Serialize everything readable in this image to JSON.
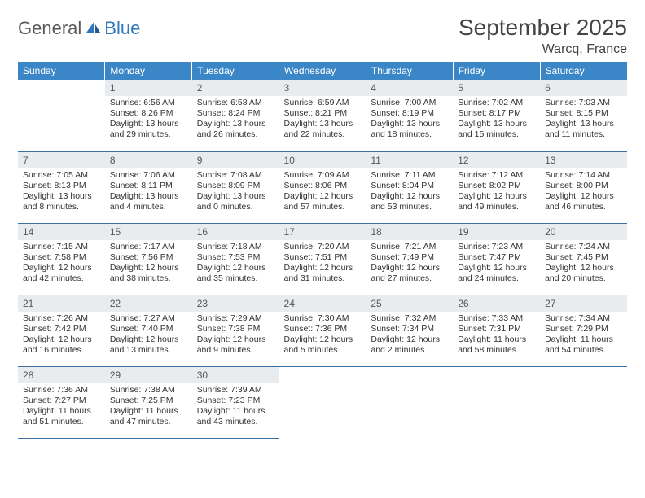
{
  "brand": {
    "part1": "General",
    "part2": "Blue"
  },
  "title": "September 2025",
  "location": "Warcq, France",
  "colors": {
    "header_bg": "#3b86c6",
    "header_text": "#ffffff",
    "daynum_bg": "#e9ecef",
    "row_divider": "#3b6fa0",
    "brand_gray": "#5a5a5a",
    "brand_blue": "#2f78bd"
  },
  "weekdays": [
    "Sunday",
    "Monday",
    "Tuesday",
    "Wednesday",
    "Thursday",
    "Friday",
    "Saturday"
  ],
  "weeks": [
    [
      null,
      {
        "n": "1",
        "sr": "Sunrise: 6:56 AM",
        "ss": "Sunset: 8:26 PM",
        "d1": "Daylight: 13 hours",
        "d2": "and 29 minutes."
      },
      {
        "n": "2",
        "sr": "Sunrise: 6:58 AM",
        "ss": "Sunset: 8:24 PM",
        "d1": "Daylight: 13 hours",
        "d2": "and 26 minutes."
      },
      {
        "n": "3",
        "sr": "Sunrise: 6:59 AM",
        "ss": "Sunset: 8:21 PM",
        "d1": "Daylight: 13 hours",
        "d2": "and 22 minutes."
      },
      {
        "n": "4",
        "sr": "Sunrise: 7:00 AM",
        "ss": "Sunset: 8:19 PM",
        "d1": "Daylight: 13 hours",
        "d2": "and 18 minutes."
      },
      {
        "n": "5",
        "sr": "Sunrise: 7:02 AM",
        "ss": "Sunset: 8:17 PM",
        "d1": "Daylight: 13 hours",
        "d2": "and 15 minutes."
      },
      {
        "n": "6",
        "sr": "Sunrise: 7:03 AM",
        "ss": "Sunset: 8:15 PM",
        "d1": "Daylight: 13 hours",
        "d2": "and 11 minutes."
      }
    ],
    [
      {
        "n": "7",
        "sr": "Sunrise: 7:05 AM",
        "ss": "Sunset: 8:13 PM",
        "d1": "Daylight: 13 hours",
        "d2": "and 8 minutes."
      },
      {
        "n": "8",
        "sr": "Sunrise: 7:06 AM",
        "ss": "Sunset: 8:11 PM",
        "d1": "Daylight: 13 hours",
        "d2": "and 4 minutes."
      },
      {
        "n": "9",
        "sr": "Sunrise: 7:08 AM",
        "ss": "Sunset: 8:09 PM",
        "d1": "Daylight: 13 hours",
        "d2": "and 0 minutes."
      },
      {
        "n": "10",
        "sr": "Sunrise: 7:09 AM",
        "ss": "Sunset: 8:06 PM",
        "d1": "Daylight: 12 hours",
        "d2": "and 57 minutes."
      },
      {
        "n": "11",
        "sr": "Sunrise: 7:11 AM",
        "ss": "Sunset: 8:04 PM",
        "d1": "Daylight: 12 hours",
        "d2": "and 53 minutes."
      },
      {
        "n": "12",
        "sr": "Sunrise: 7:12 AM",
        "ss": "Sunset: 8:02 PM",
        "d1": "Daylight: 12 hours",
        "d2": "and 49 minutes."
      },
      {
        "n": "13",
        "sr": "Sunrise: 7:14 AM",
        "ss": "Sunset: 8:00 PM",
        "d1": "Daylight: 12 hours",
        "d2": "and 46 minutes."
      }
    ],
    [
      {
        "n": "14",
        "sr": "Sunrise: 7:15 AM",
        "ss": "Sunset: 7:58 PM",
        "d1": "Daylight: 12 hours",
        "d2": "and 42 minutes."
      },
      {
        "n": "15",
        "sr": "Sunrise: 7:17 AM",
        "ss": "Sunset: 7:56 PM",
        "d1": "Daylight: 12 hours",
        "d2": "and 38 minutes."
      },
      {
        "n": "16",
        "sr": "Sunrise: 7:18 AM",
        "ss": "Sunset: 7:53 PM",
        "d1": "Daylight: 12 hours",
        "d2": "and 35 minutes."
      },
      {
        "n": "17",
        "sr": "Sunrise: 7:20 AM",
        "ss": "Sunset: 7:51 PM",
        "d1": "Daylight: 12 hours",
        "d2": "and 31 minutes."
      },
      {
        "n": "18",
        "sr": "Sunrise: 7:21 AM",
        "ss": "Sunset: 7:49 PM",
        "d1": "Daylight: 12 hours",
        "d2": "and 27 minutes."
      },
      {
        "n": "19",
        "sr": "Sunrise: 7:23 AM",
        "ss": "Sunset: 7:47 PM",
        "d1": "Daylight: 12 hours",
        "d2": "and 24 minutes."
      },
      {
        "n": "20",
        "sr": "Sunrise: 7:24 AM",
        "ss": "Sunset: 7:45 PM",
        "d1": "Daylight: 12 hours",
        "d2": "and 20 minutes."
      }
    ],
    [
      {
        "n": "21",
        "sr": "Sunrise: 7:26 AM",
        "ss": "Sunset: 7:42 PM",
        "d1": "Daylight: 12 hours",
        "d2": "and 16 minutes."
      },
      {
        "n": "22",
        "sr": "Sunrise: 7:27 AM",
        "ss": "Sunset: 7:40 PM",
        "d1": "Daylight: 12 hours",
        "d2": "and 13 minutes."
      },
      {
        "n": "23",
        "sr": "Sunrise: 7:29 AM",
        "ss": "Sunset: 7:38 PM",
        "d1": "Daylight: 12 hours",
        "d2": "and 9 minutes."
      },
      {
        "n": "24",
        "sr": "Sunrise: 7:30 AM",
        "ss": "Sunset: 7:36 PM",
        "d1": "Daylight: 12 hours",
        "d2": "and 5 minutes."
      },
      {
        "n": "25",
        "sr": "Sunrise: 7:32 AM",
        "ss": "Sunset: 7:34 PM",
        "d1": "Daylight: 12 hours",
        "d2": "and 2 minutes."
      },
      {
        "n": "26",
        "sr": "Sunrise: 7:33 AM",
        "ss": "Sunset: 7:31 PM",
        "d1": "Daylight: 11 hours",
        "d2": "and 58 minutes."
      },
      {
        "n": "27",
        "sr": "Sunrise: 7:34 AM",
        "ss": "Sunset: 7:29 PM",
        "d1": "Daylight: 11 hours",
        "d2": "and 54 minutes."
      }
    ],
    [
      {
        "n": "28",
        "sr": "Sunrise: 7:36 AM",
        "ss": "Sunset: 7:27 PM",
        "d1": "Daylight: 11 hours",
        "d2": "and 51 minutes."
      },
      {
        "n": "29",
        "sr": "Sunrise: 7:38 AM",
        "ss": "Sunset: 7:25 PM",
        "d1": "Daylight: 11 hours",
        "d2": "and 47 minutes."
      },
      {
        "n": "30",
        "sr": "Sunrise: 7:39 AM",
        "ss": "Sunset: 7:23 PM",
        "d1": "Daylight: 11 hours",
        "d2": "and 43 minutes."
      },
      null,
      null,
      null,
      null
    ]
  ]
}
